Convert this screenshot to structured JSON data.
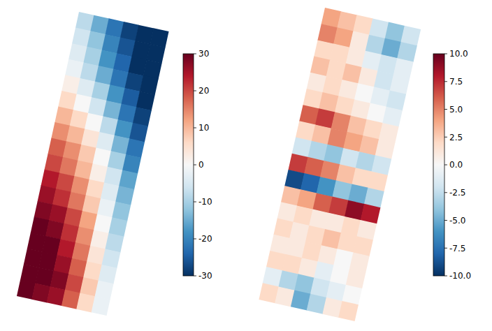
{
  "chart_data": [
    {
      "type": "heatmap",
      "tick_labels": false,
      "colorbar_lim": [
        -30,
        30
      ],
      "colorbar_ticks": [
        -30,
        -20,
        -10,
        0,
        10,
        20,
        30
      ],
      "values": [
        [
          -8,
          -15,
          -22,
          -28,
          -30,
          -30
        ],
        [
          -6,
          -12,
          -20,
          -26,
          -30,
          -30
        ],
        [
          -4,
          -10,
          -18,
          -24,
          -30,
          -30
        ],
        [
          -2,
          -8,
          -15,
          -22,
          -28,
          -30
        ],
        [
          2,
          -4,
          -10,
          -18,
          -25,
          -30
        ],
        [
          6,
          0,
          -6,
          -14,
          -22,
          -28
        ],
        [
          10,
          6,
          0,
          -8,
          -18,
          -26
        ],
        [
          14,
          10,
          4,
          -4,
          -14,
          -22
        ],
        [
          18,
          14,
          8,
          0,
          -10,
          -20
        ],
        [
          20,
          16,
          10,
          2,
          -6,
          -16
        ],
        [
          24,
          20,
          14,
          6,
          -4,
          -14
        ],
        [
          26,
          22,
          16,
          8,
          -2,
          -12
        ],
        [
          28,
          26,
          20,
          12,
          0,
          -10
        ],
        [
          30,
          28,
          22,
          14,
          2,
          -8
        ],
        [
          30,
          30,
          24,
          16,
          4,
          -6
        ],
        [
          30,
          30,
          26,
          18,
          6,
          -4
        ],
        [
          30,
          30,
          28,
          20,
          8,
          -2
        ],
        [
          30,
          28,
          26,
          18,
          6,
          -2
        ]
      ]
    },
    {
      "type": "heatmap",
      "tick_labels": false,
      "colorbar_lim": [
        -10,
        10
      ],
      "colorbar_ticks": [
        {
          "value": -10,
          "label": "-10.0"
        },
        {
          "value": -7.5,
          "label": "-7.5"
        },
        {
          "value": -5,
          "label": "-5.0"
        },
        {
          "value": -2.5,
          "label": "-2.5"
        },
        {
          "value": 0,
          "label": "0.0"
        },
        {
          "value": 2.5,
          "label": "2.5"
        },
        {
          "value": 5,
          "label": "5.0"
        },
        {
          "value": 7.5,
          "label": "7.5"
        },
        {
          "value": 10,
          "label": "10.0"
        }
      ],
      "values": [
        [
          4,
          3,
          2,
          -2,
          -4,
          -2
        ],
        [
          5,
          4,
          1,
          -3,
          -5,
          -3
        ],
        [
          2,
          2,
          1,
          -1,
          -2,
          -1
        ],
        [
          3,
          2,
          3,
          1,
          -2,
          -1
        ],
        [
          1,
          2,
          1,
          0,
          -1,
          -2
        ],
        [
          2,
          3,
          2,
          1,
          0,
          -1
        ],
        [
          6,
          7,
          5,
          3,
          2,
          1
        ],
        [
          2,
          3,
          5,
          4,
          3,
          1
        ],
        [
          -2,
          -3,
          -4,
          -2,
          -3,
          -2
        ],
        [
          7,
          6,
          5,
          3,
          2,
          2
        ],
        [
          -9,
          -8,
          -6,
          -4,
          -5,
          -3
        ],
        [
          3,
          4,
          6,
          7,
          9,
          8
        ],
        [
          1,
          2,
          1,
          1,
          2,
          1
        ],
        [
          2,
          1,
          2,
          3,
          2,
          2
        ],
        [
          1,
          1,
          2,
          1,
          0,
          1
        ],
        [
          2,
          2,
          1,
          -1,
          0,
          1
        ],
        [
          -1,
          -3,
          -4,
          -2,
          -1,
          0
        ],
        [
          2,
          1,
          -5,
          -3,
          1,
          2
        ]
      ]
    }
  ]
}
